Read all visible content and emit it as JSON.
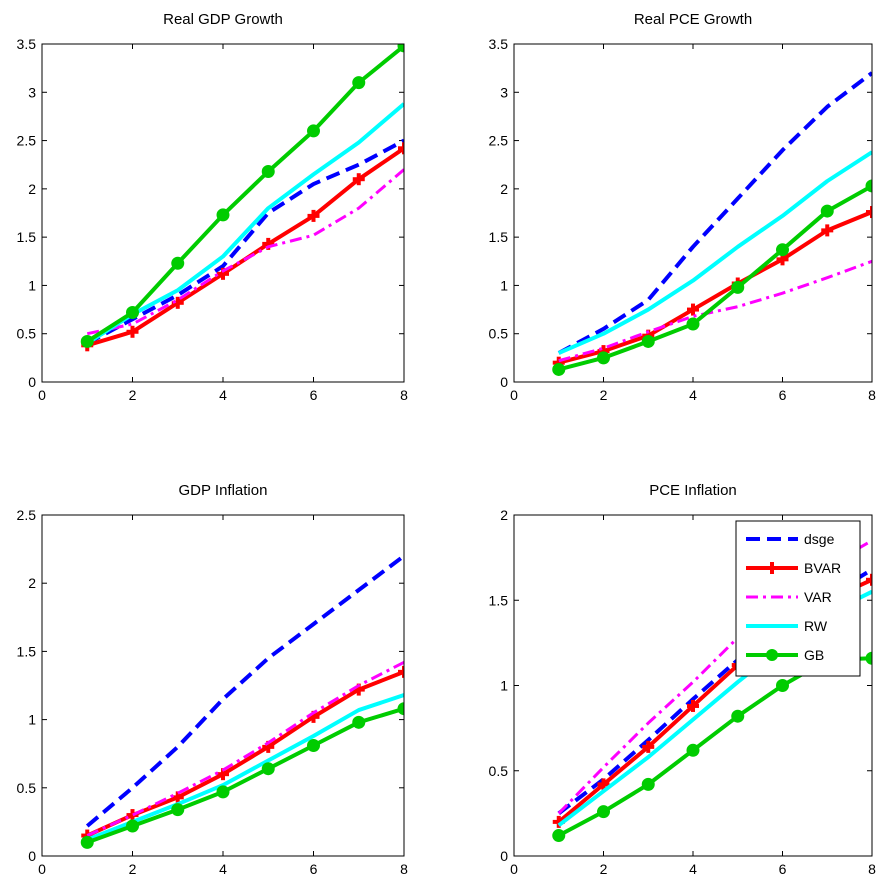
{
  "chart_data": [
    {
      "type": "line",
      "title": "Real GDP Growth",
      "xlim": [
        0,
        8
      ],
      "ylim": [
        0,
        3.5
      ],
      "xticks": [
        0,
        2,
        4,
        6,
        8
      ],
      "yticks": [
        0,
        0.5,
        1,
        1.5,
        2,
        2.5,
        3,
        3.5
      ],
      "x": [
        1,
        2,
        3,
        4,
        5,
        6,
        7,
        8
      ],
      "series": [
        {
          "key": "dsge",
          "values": [
            0.4,
            0.65,
            0.9,
            1.2,
            1.75,
            2.05,
            2.25,
            2.5
          ]
        },
        {
          "key": "BVAR",
          "values": [
            0.38,
            0.52,
            0.82,
            1.12,
            1.43,
            1.72,
            2.1,
            2.42
          ]
        },
        {
          "key": "VAR",
          "values": [
            0.5,
            0.6,
            0.85,
            1.15,
            1.4,
            1.52,
            1.8,
            2.2
          ]
        },
        {
          "key": "RW",
          "values": [
            0.4,
            0.7,
            0.95,
            1.3,
            1.8,
            2.15,
            2.48,
            2.88
          ]
        },
        {
          "key": "GB",
          "values": [
            0.42,
            0.72,
            1.23,
            1.73,
            2.18,
            2.6,
            3.1,
            3.48
          ]
        }
      ]
    },
    {
      "type": "line",
      "title": "Real PCE Growth",
      "xlim": [
        0,
        8
      ],
      "ylim": [
        0,
        3.5
      ],
      "xticks": [
        0,
        2,
        4,
        6,
        8
      ],
      "yticks": [
        0,
        0.5,
        1,
        1.5,
        2,
        2.5,
        3,
        3.5
      ],
      "x": [
        1,
        2,
        3,
        4,
        5,
        6,
        7,
        8
      ],
      "series": [
        {
          "key": "dsge",
          "values": [
            0.3,
            0.55,
            0.85,
            1.4,
            1.9,
            2.4,
            2.85,
            3.2
          ]
        },
        {
          "key": "BVAR",
          "values": [
            0.2,
            0.32,
            0.48,
            0.75,
            1.02,
            1.27,
            1.57,
            1.76
          ]
        },
        {
          "key": "VAR",
          "values": [
            0.22,
            0.35,
            0.52,
            0.68,
            0.78,
            0.92,
            1.08,
            1.25
          ]
        },
        {
          "key": "RW",
          "values": [
            0.3,
            0.5,
            0.75,
            1.05,
            1.4,
            1.72,
            2.08,
            2.38
          ]
        },
        {
          "key": "GB",
          "values": [
            0.13,
            0.25,
            0.42,
            0.6,
            0.98,
            1.37,
            1.77,
            2.03
          ]
        }
      ]
    },
    {
      "type": "line",
      "title": "GDP Inflation",
      "xlim": [
        0,
        8
      ],
      "ylim": [
        0,
        2.5
      ],
      "xticks": [
        0,
        2,
        4,
        6,
        8
      ],
      "yticks": [
        0,
        0.5,
        1,
        1.5,
        2,
        2.5
      ],
      "x": [
        1,
        2,
        3,
        4,
        5,
        6,
        7,
        8
      ],
      "series": [
        {
          "key": "dsge",
          "values": [
            0.22,
            0.5,
            0.8,
            1.15,
            1.45,
            1.7,
            1.95,
            2.2
          ]
        },
        {
          "key": "BVAR",
          "values": [
            0.15,
            0.3,
            0.43,
            0.6,
            0.8,
            1.02,
            1.22,
            1.35
          ]
        },
        {
          "key": "VAR",
          "values": [
            0.15,
            0.3,
            0.46,
            0.63,
            0.83,
            1.05,
            1.25,
            1.42
          ]
        },
        {
          "key": "RW",
          "values": [
            0.12,
            0.25,
            0.38,
            0.52,
            0.7,
            0.88,
            1.07,
            1.18
          ]
        },
        {
          "key": "GB",
          "values": [
            0.1,
            0.22,
            0.34,
            0.47,
            0.64,
            0.81,
            0.98,
            1.08
          ]
        }
      ]
    },
    {
      "type": "line",
      "title": "PCE Inflation",
      "xlim": [
        0,
        8
      ],
      "ylim": [
        0,
        2
      ],
      "xticks": [
        0,
        2,
        4,
        6,
        8
      ],
      "yticks": [
        0,
        0.5,
        1,
        1.5,
        2
      ],
      "x": [
        1,
        2,
        3,
        4,
        5,
        6,
        7,
        8
      ],
      "legend": {
        "placement": "top-right",
        "entries": [
          {
            "key": "dsge",
            "label": "dsge"
          },
          {
            "key": "BVAR",
            "label": "BVAR"
          },
          {
            "key": "VAR",
            "label": "VAR"
          },
          {
            "key": "RW",
            "label": "RW"
          },
          {
            "key": "GB",
            "label": "GB"
          }
        ]
      },
      "series": [
        {
          "key": "dsge",
          "values": [
            0.25,
            0.45,
            0.68,
            0.92,
            1.15,
            1.35,
            1.52,
            1.68
          ]
        },
        {
          "key": "BVAR",
          "values": [
            0.2,
            0.42,
            0.64,
            0.88,
            1.12,
            1.33,
            1.5,
            1.62
          ]
        },
        {
          "key": "VAR",
          "values": [
            0.25,
            0.52,
            0.78,
            1.02,
            1.28,
            1.5,
            1.7,
            1.85
          ]
        },
        {
          "key": "RW",
          "values": [
            0.18,
            0.38,
            0.58,
            0.8,
            1.02,
            1.23,
            1.42,
            1.55
          ]
        },
        {
          "key": "GB",
          "values": [
            0.12,
            0.26,
            0.42,
            0.62,
            0.82,
            1.0,
            1.15,
            1.16
          ]
        }
      ]
    }
  ],
  "series_styles": {
    "dsge": {
      "color": "#0000ff",
      "line": "dashed",
      "marker": "none"
    },
    "BVAR": {
      "color": "#ff0000",
      "line": "solid",
      "marker": "plus"
    },
    "VAR": {
      "color": "#ff00ff",
      "line": "dashdot",
      "marker": "none"
    },
    "RW": {
      "color": "#00ffff",
      "line": "solid",
      "marker": "none"
    },
    "GB": {
      "color": "#00cc00",
      "line": "solid",
      "marker": "circle"
    }
  }
}
